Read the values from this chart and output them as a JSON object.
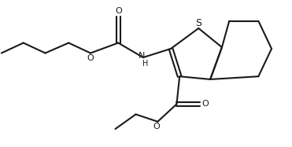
{
  "bg_color": "#ffffff",
  "line_color": "#1a1a1a",
  "text_color": "#1a1a1a",
  "line_width": 1.5,
  "figsize": [
    3.71,
    1.87
  ],
  "dpi": 100,
  "xlim": [
    0,
    10
  ],
  "ylim": [
    0,
    5
  ]
}
